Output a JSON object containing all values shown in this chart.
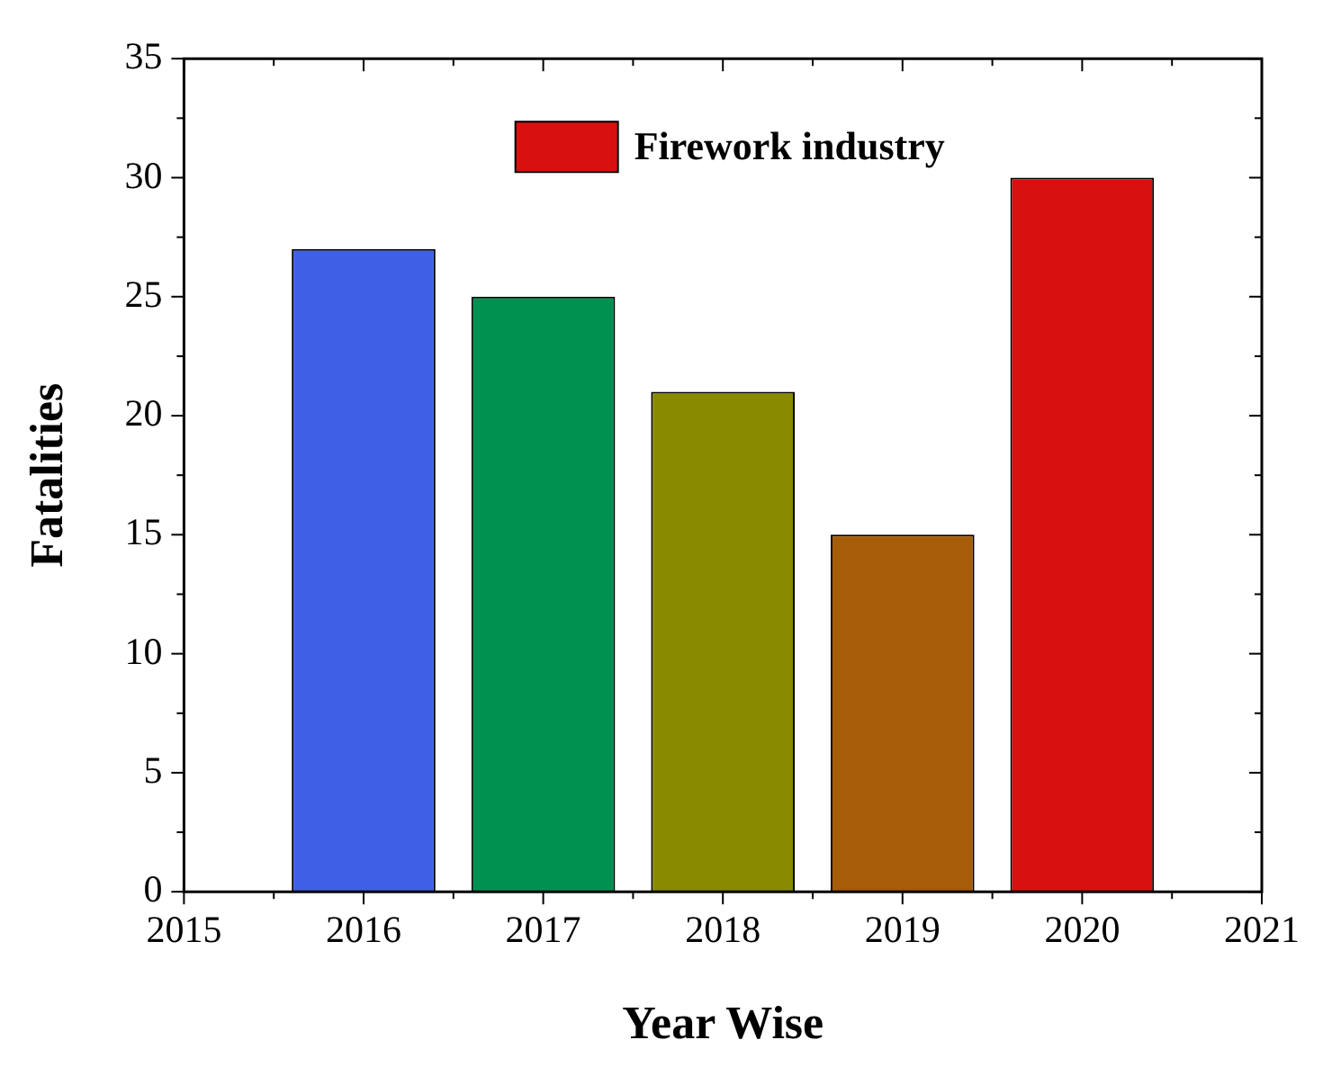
{
  "chart_data": {
    "type": "bar",
    "xlabel": "Year Wise",
    "ylabel": "Fatalities",
    "x": [
      2016,
      2017,
      2018,
      2019,
      2020
    ],
    "series": [
      {
        "name": "Firework industry",
        "color": "#d91010",
        "colors": [
          "#3f5fe6",
          "#009150",
          "#8a8a00",
          "#a65c08",
          "#d91010"
        ],
        "values": [
          27,
          25,
          21,
          15,
          30
        ]
      }
    ],
    "xlim": [
      2015,
      2021
    ],
    "xticks": [
      2015,
      2016,
      2017,
      2018,
      2019,
      2020,
      2021
    ],
    "ylim": [
      0,
      35
    ],
    "yticks": [
      0,
      5,
      10,
      15,
      20,
      25,
      30,
      35
    ],
    "grid": false,
    "legend": "top"
  }
}
